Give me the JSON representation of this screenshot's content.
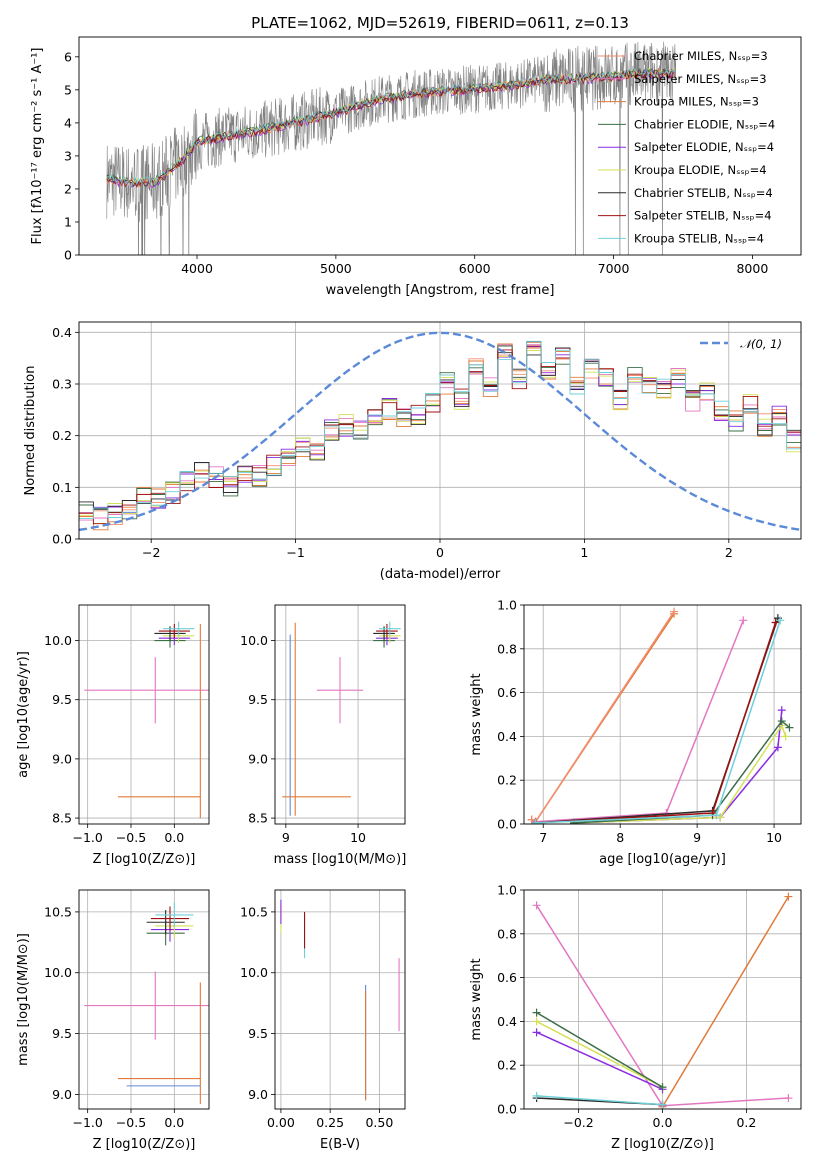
{
  "figure_title": "PLATE=1062, MJD=52619, FIBERID=0611, z=0.13",
  "colors": {
    "grey": "#808080",
    "salmon": "#f28e6e",
    "orange": "#e07b39",
    "black": "#2b2b2b",
    "purple": "#8a2be2",
    "yellow": "#d4e157",
    "dkgreen": "#3c6e47",
    "darkred": "#a01010",
    "cyan": "#6fcfd8",
    "blue": "#5b8ad8",
    "pink": "#e377c2",
    "green": "#2ca02c"
  },
  "chart_data": [
    {
      "id": "spectrum",
      "type": "line",
      "title": "PLATE=1062, MJD=52619, FIBERID=0611, z=0.13",
      "xlabel": "wavelength [Angstrom, rest frame]",
      "ylabel": "Flux [f_λ 10^-17 erg cm^-2 s^-1 A^-1]",
      "xlim": [
        3150,
        8350
      ],
      "ylim": [
        0,
        6.6
      ],
      "xticks": [
        4000,
        5000,
        6000,
        7000,
        8000
      ],
      "yticks": [
        0,
        1,
        2,
        3,
        4,
        5,
        6
      ],
      "grid": false,
      "legend_position": "top-right",
      "series": [
        {
          "name": "Chabrier MILES, N_SSP=3",
          "color": "salmon"
        },
        {
          "name": "Salpeter MILES, N_SSP=3",
          "color": "pink"
        },
        {
          "name": "Kroupa MILES, N_SSP=3",
          "color": "orange"
        },
        {
          "name": "Chabrier ELODIE, N_SSP=4",
          "color": "dkgreen"
        },
        {
          "name": "Salpeter ELODIE, N_SSP=4",
          "color": "purple"
        },
        {
          "name": "Kroupa ELODIE, N_SSP=4",
          "color": "yellow"
        },
        {
          "name": "Chabrier STELIB, N_SSP=4",
          "color": "black"
        },
        {
          "name": "Salpeter STELIB, N_SSP=4",
          "color": "darkred"
        },
        {
          "name": "Kroupa STELIB, N_SSP=4",
          "color": "cyan"
        }
      ],
      "continuum": {
        "x": [
          3350,
          3500,
          3700,
          3900,
          4000,
          4200,
          4500,
          4800,
          5000,
          5300,
          5600,
          5900,
          6200,
          6500,
          6800,
          7000,
          7200
        ],
        "y": [
          2.3,
          2.2,
          2.2,
          2.9,
          3.4,
          3.6,
          3.8,
          4.1,
          4.3,
          4.7,
          4.9,
          5.0,
          5.1,
          5.3,
          5.35,
          5.4,
          5.5
        ]
      }
    },
    {
      "id": "residuals",
      "type": "line",
      "xlabel": "(data-model)/error",
      "ylabel": "Normed distribution",
      "xlim": [
        -2.5,
        2.5
      ],
      "ylim": [
        0,
        0.42
      ],
      "xticks": [
        -2,
        -1,
        0,
        1,
        2
      ],
      "yticks": [
        0.0,
        0.1,
        0.2,
        0.3,
        0.4
      ],
      "grid": true,
      "legend_position": "top-right",
      "gaussian_label": "𝒩(0, 1)",
      "bin_width": 0.1,
      "bins_start": -2.5,
      "hist_values": [
        0.05,
        0.04,
        0.05,
        0.06,
        0.09,
        0.08,
        0.09,
        0.11,
        0.13,
        0.12,
        0.1,
        0.13,
        0.12,
        0.14,
        0.16,
        0.18,
        0.17,
        0.21,
        0.22,
        0.21,
        0.23,
        0.25,
        0.23,
        0.24,
        0.26,
        0.3,
        0.27,
        0.33,
        0.29,
        0.36,
        0.31,
        0.37,
        0.33,
        0.35,
        0.3,
        0.33,
        0.31,
        0.27,
        0.31,
        0.3,
        0.29,
        0.31,
        0.27,
        0.29,
        0.25,
        0.23,
        0.26,
        0.22,
        0.24,
        0.19
      ]
    },
    {
      "id": "age_vs_Z",
      "type": "scatter",
      "xlabel": "Z [log10(Z/Z⊙)]",
      "ylabel": "age [log10(age/yr)]",
      "xlim": [
        -1.1,
        0.4
      ],
      "ylim": [
        8.45,
        10.3
      ],
      "xticks": [
        -1.0,
        -0.5,
        0.0
      ],
      "yticks": [
        8.5,
        9.0,
        9.5,
        10.0
      ],
      "grid": true
    },
    {
      "id": "age_vs_mass",
      "type": "scatter",
      "xlabel": "mass [log10(M/M⊙)]",
      "xlim": [
        8.85,
        10.65
      ],
      "ylim": [
        8.45,
        10.3
      ],
      "xticks": [
        9,
        10
      ],
      "yticks": [
        8.5,
        9.0,
        9.5,
        10.0
      ],
      "grid": true
    },
    {
      "id": "weight_vs_age",
      "type": "line",
      "xlabel": "age [log10(age/yr)]",
      "ylabel": "mass weight",
      "xlim": [
        6.75,
        10.35
      ],
      "ylim": [
        0,
        1.0
      ],
      "xticks": [
        7,
        8,
        9,
        10
      ],
      "yticks": [
        0.0,
        0.2,
        0.4,
        0.6,
        0.8,
        1.0
      ],
      "grid": true,
      "series": [
        {
          "color": "orange",
          "x": [
            6.85,
            6.9,
            8.7
          ],
          "y": [
            0.02,
            0.01,
            0.96
          ]
        },
        {
          "color": "salmon",
          "x": [
            6.85,
            6.9,
            8.7
          ],
          "y": [
            0.02,
            0.01,
            0.97
          ]
        },
        {
          "color": "pink",
          "x": [
            6.9,
            8.6,
            9.6
          ],
          "y": [
            0.01,
            0.05,
            0.93
          ]
        },
        {
          "color": "purple",
          "x": [
            7.4,
            9.3,
            10.05,
            10.1
          ],
          "y": [
            0.005,
            0.03,
            0.35,
            0.52
          ]
        },
        {
          "color": "yellow",
          "x": [
            7.4,
            9.3,
            10.1,
            10.15
          ],
          "y": [
            0.005,
            0.03,
            0.45,
            0.4
          ]
        },
        {
          "color": "dkgreen",
          "x": [
            7.4,
            9.2,
            10.1,
            10.2
          ],
          "y": [
            0.005,
            0.04,
            0.47,
            0.44
          ]
        },
        {
          "color": "black",
          "x": [
            6.9,
            9.2,
            10.05
          ],
          "y": [
            0.005,
            0.06,
            0.94
          ]
        },
        {
          "color": "darkred",
          "x": [
            6.9,
            9.2,
            10.02
          ],
          "y": [
            0.005,
            0.05,
            0.92
          ]
        },
        {
          "color": "cyan",
          "x": [
            6.9,
            9.25,
            10.08
          ],
          "y": [
            0.005,
            0.04,
            0.93
          ]
        }
      ]
    },
    {
      "id": "mass_vs_Z",
      "type": "scatter",
      "xlabel": "Z [log10(Z/Z⊙)]",
      "ylabel": "mass [log10(M/M⊙)]",
      "xlim": [
        -1.1,
        0.4
      ],
      "ylim": [
        8.88,
        10.68
      ],
      "xticks": [
        -1.0,
        -0.5,
        0.0
      ],
      "yticks": [
        9.0,
        9.5,
        10.0,
        10.5
      ],
      "grid": true
    },
    {
      "id": "mass_vs_ebv",
      "type": "scatter",
      "xlabel": "E(B-V)",
      "xlim": [
        -0.03,
        0.63
      ],
      "ylim": [
        8.88,
        10.68
      ],
      "xticks": [
        0.0,
        0.25,
        0.5
      ],
      "yticks": [
        9.0,
        9.5,
        10.0,
        10.5
      ],
      "grid": true
    },
    {
      "id": "weight_vs_Z",
      "type": "line",
      "xlabel": "Z [log10(Z/Z⊙)]",
      "ylabel": "mass weight",
      "xlim": [
        -0.33,
        0.33
      ],
      "ylim": [
        0,
        1.0
      ],
      "xticks": [
        -0.2,
        0.0,
        0.2
      ],
      "yticks": [
        0.0,
        0.2,
        0.4,
        0.6,
        0.8,
        1.0
      ],
      "grid": true,
      "series": [
        {
          "color": "orange",
          "x": [
            0.0,
            0.3
          ],
          "y": [
            0.01,
            0.97
          ]
        },
        {
          "color": "pink",
          "x": [
            -0.3,
            0.0,
            0.3
          ],
          "y": [
            0.93,
            0.015,
            0.05
          ]
        },
        {
          "color": "purple",
          "x": [
            -0.3,
            0.0
          ],
          "y": [
            0.35,
            0.09
          ]
        },
        {
          "color": "yellow",
          "x": [
            -0.3,
            0.0
          ],
          "y": [
            0.4,
            0.1
          ]
        },
        {
          "color": "dkgreen",
          "x": [
            -0.3,
            0.0
          ],
          "y": [
            0.44,
            0.1
          ]
        },
        {
          "color": "black",
          "x": [
            -0.3,
            0.0
          ],
          "y": [
            0.05,
            0.02
          ]
        },
        {
          "color": "cyan",
          "x": [
            -0.3,
            0.0
          ],
          "y": [
            0.06,
            0.02
          ]
        }
      ]
    }
  ]
}
